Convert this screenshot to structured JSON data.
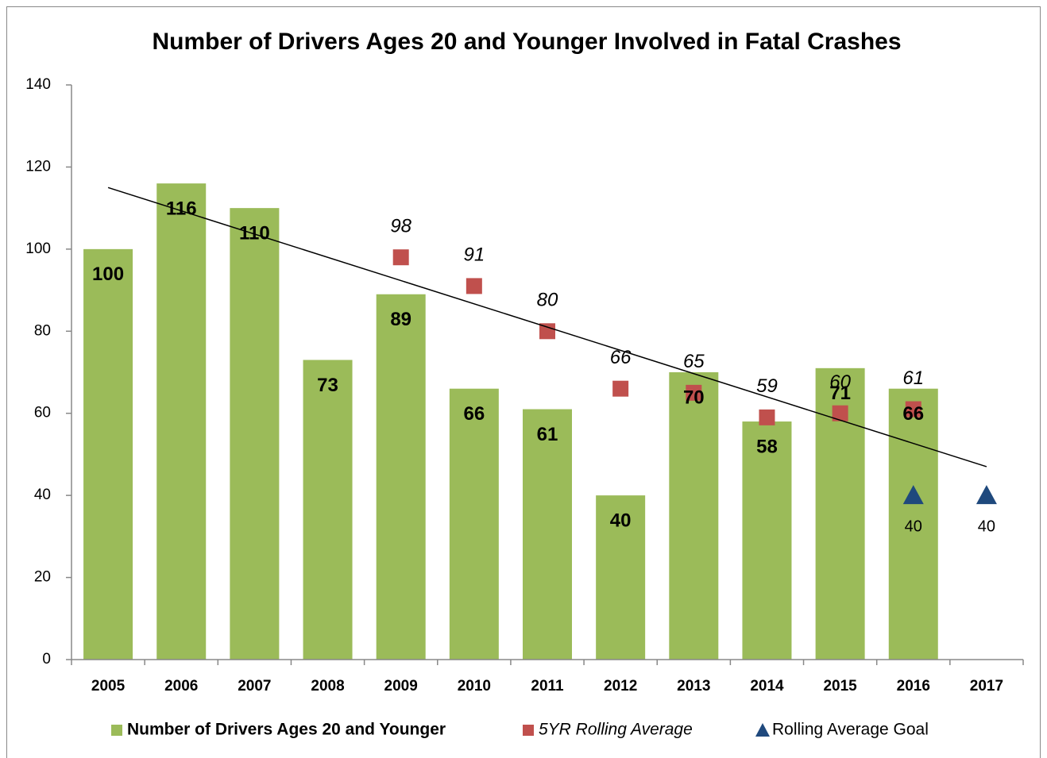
{
  "chart_data": {
    "type": "bar",
    "title": "Number of Drivers Ages 20 and Younger Involved in Fatal Crashes",
    "categories": [
      "2005",
      "2006",
      "2007",
      "2008",
      "2009",
      "2010",
      "2011",
      "2012",
      "2013",
      "2014",
      "2015",
      "2016",
      "2017"
    ],
    "series": [
      {
        "name": "Number of Drivers Ages 20 and Younger",
        "type": "bar",
        "color": "#9bbb59",
        "values": [
          100,
          116,
          110,
          73,
          89,
          66,
          61,
          40,
          70,
          58,
          71,
          66,
          null
        ]
      },
      {
        "name": "5YR Rolling Average",
        "type": "scatter",
        "marker": "square",
        "color": "#c0504d",
        "values": [
          null,
          null,
          null,
          null,
          98,
          91,
          80,
          66,
          65,
          59,
          60,
          61,
          null
        ]
      },
      {
        "name": "Rolling Average Goal",
        "type": "scatter",
        "marker": "triangle",
        "color": "#1f497d",
        "values": [
          null,
          null,
          null,
          null,
          null,
          null,
          null,
          null,
          null,
          null,
          null,
          40,
          40
        ]
      }
    ],
    "trendline": {
      "color": "#000000",
      "values": [
        115,
        47
      ]
    },
    "ylim": [
      0,
      140
    ],
    "yticks": [
      0,
      20,
      40,
      60,
      80,
      100,
      120,
      140
    ],
    "legend": "bottom"
  }
}
